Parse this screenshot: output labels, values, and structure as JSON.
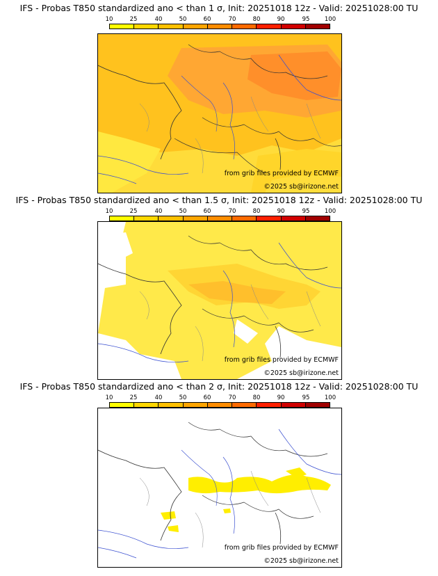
{
  "scale": {
    "labels": [
      "10",
      "25",
      "40",
      "50",
      "60",
      "70",
      "80",
      "90",
      "95",
      "100"
    ],
    "colors": [
      "#ffff00",
      "#ffd700",
      "#ffc000",
      "#ffa500",
      "#ff8c00",
      "#ff6a00",
      "#ff2000",
      "#d00000",
      "#a00000",
      "#600000"
    ]
  },
  "panels": [
    {
      "title": "IFS - Probas T850  standardized ano < than 1 σ, Init: 20251018 12z - Valid: 20251028:00 TU",
      "credit_source": "from grib files provided by ECMWF",
      "credit_copyright": "©2025 sb@irizone.net",
      "coverage_level": "high"
    },
    {
      "title": "IFS - Probas T850  standardized ano < than 1.5 σ, Init: 20251018 12z - Valid: 20251028:00 TU",
      "credit_source": "from grib files provided by ECMWF",
      "credit_copyright": "©2025 sb@irizone.net",
      "coverage_level": "medium"
    },
    {
      "title": "IFS - Probas T850  standardized ano < than 2 σ, Init: 20251018 12z - Valid: 20251028:00 TU",
      "credit_source": "from grib files provided by ECMWF",
      "credit_copyright": "©2025 sb@irizone.net",
      "coverage_level": "low"
    }
  ]
}
